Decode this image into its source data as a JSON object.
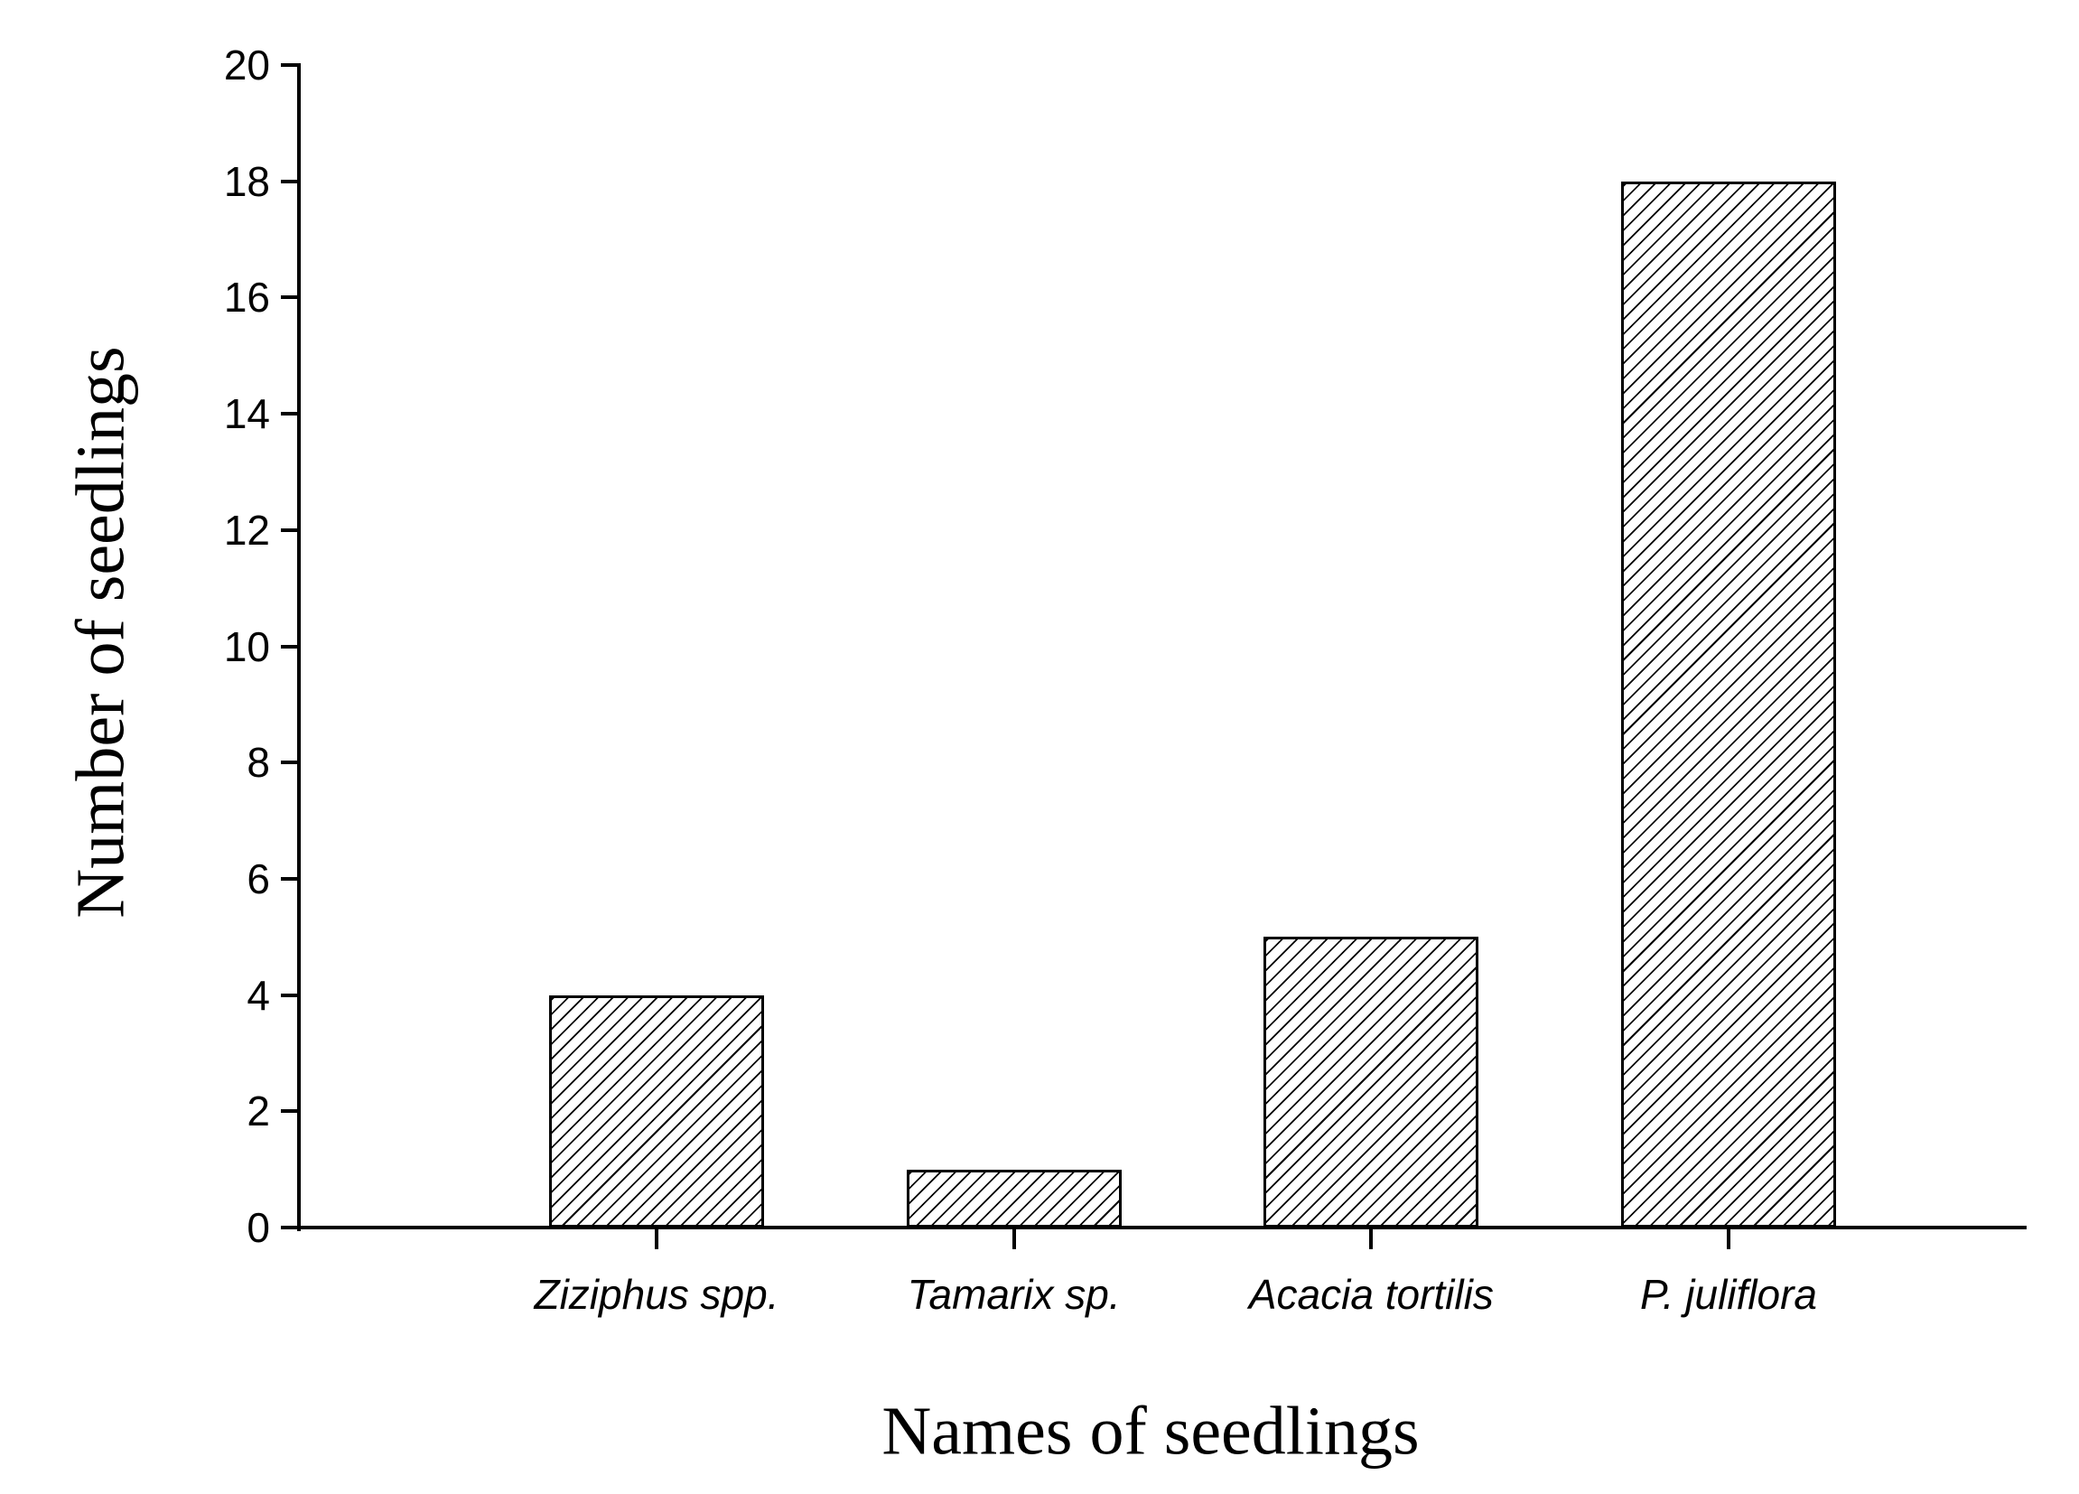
{
  "chart_data": {
    "type": "bar",
    "title": "",
    "categories": [
      "Ziziphus spp.",
      "Tamarix sp.",
      "Acacia tortilis",
      "P. juliflora"
    ],
    "values": [
      4,
      1,
      5,
      18
    ],
    "xlabel": "Names of seedlings",
    "ylabel": "Number of seedlings",
    "ylim": [
      0,
      20
    ],
    "yticks": [
      0,
      2,
      4,
      6,
      8,
      10,
      12,
      14,
      16,
      18,
      20
    ],
    "grid": false,
    "legend": false,
    "bar_style": {
      "fill": "#ffffff",
      "hatch": "forward-diagonal-lines",
      "border_color": "#000000"
    },
    "category_label_style": "italic",
    "axis_color": "#000000",
    "text_color": "#000000",
    "background_color": "#ffffff"
  }
}
